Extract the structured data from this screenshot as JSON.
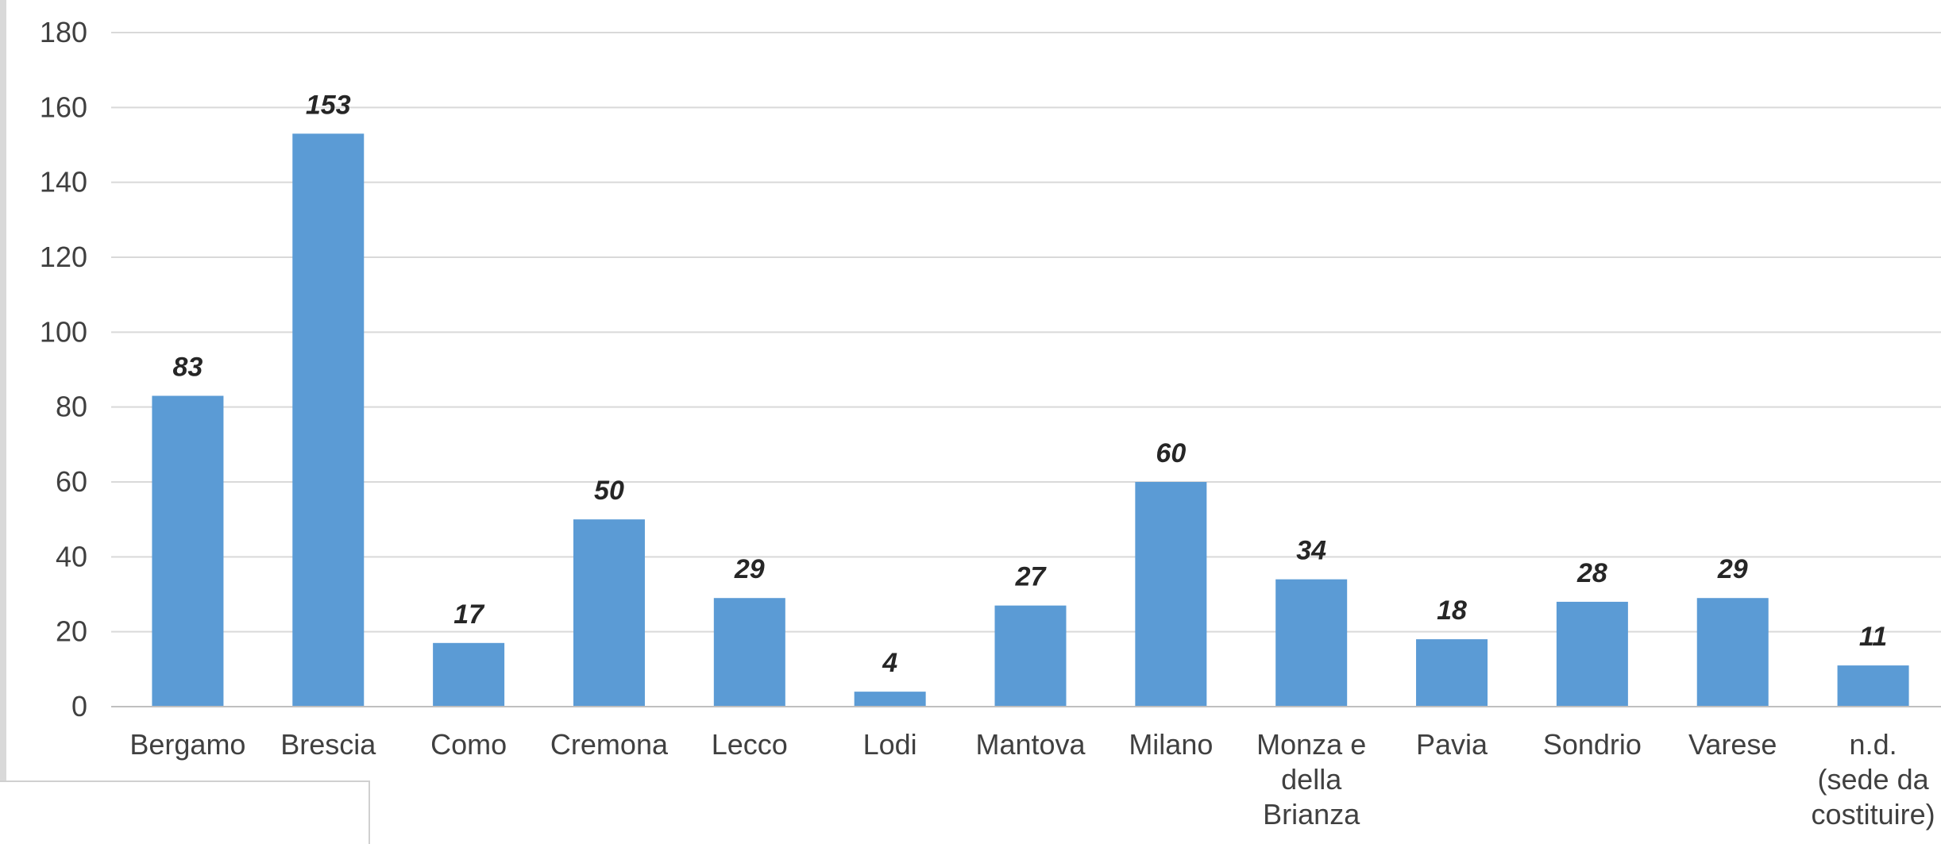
{
  "chart_data": {
    "type": "bar",
    "categories": [
      [
        "Bergamo"
      ],
      [
        "Brescia"
      ],
      [
        "Como"
      ],
      [
        "Cremona"
      ],
      [
        "Lecco"
      ],
      [
        "Lodi"
      ],
      [
        "Mantova"
      ],
      [
        "Milano"
      ],
      [
        "Monza e",
        "della",
        "Brianza"
      ],
      [
        "Pavia"
      ],
      [
        "Sondrio"
      ],
      [
        "Varese"
      ],
      [
        "n.d.",
        "(sede da",
        "costituire)"
      ]
    ],
    "values": [
      83,
      153,
      17,
      50,
      29,
      4,
      27,
      60,
      34,
      18,
      28,
      29,
      11
    ],
    "ylim": [
      0,
      180
    ],
    "yticks": [
      0,
      20,
      40,
      60,
      80,
      100,
      120,
      140,
      160,
      180
    ],
    "grid": true,
    "legend": "none",
    "bar_color": "#5B9BD5",
    "grid_color": "#D9D9D9"
  }
}
